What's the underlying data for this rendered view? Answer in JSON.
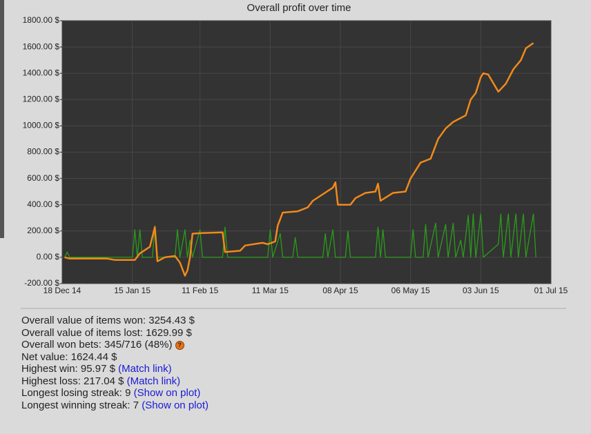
{
  "chart_data": {
    "type": "line",
    "title": "Overall profit over time",
    "xlim": [
      "2014-12-18",
      "2015-07-01"
    ],
    "xticks": [
      {
        "value": "2014-12-18",
        "label": "18 Dec 14"
      },
      {
        "value": "2015-01-15",
        "label": "15 Jan 15"
      },
      {
        "value": "2015-02-11",
        "label": "11 Feb 15"
      },
      {
        "value": "2015-03-11",
        "label": "11 Mar 15"
      },
      {
        "value": "2015-04-08",
        "label": "08 Apr 15"
      },
      {
        "value": "2015-05-06",
        "label": "06 May 15"
      },
      {
        "value": "2015-06-03",
        "label": "03 Jun 15"
      },
      {
        "value": "2015-07-01",
        "label": "01 Jul 15"
      }
    ],
    "ylim": [
      -200,
      1800
    ],
    "yticks": [
      {
        "value": -200,
        "label": "-200.00 $"
      },
      {
        "value": 0,
        "label": "0.00 $"
      },
      {
        "value": 200,
        "label": "200.00 $"
      },
      {
        "value": 400,
        "label": "400.00 $"
      },
      {
        "value": 600,
        "label": "600.00 $"
      },
      {
        "value": 800,
        "label": "800.00 $"
      },
      {
        "value": 1000,
        "label": "1000.00 $"
      },
      {
        "value": 1200,
        "label": "1200.00 $"
      },
      {
        "value": 1400,
        "label": "1400.00 $"
      },
      {
        "value": 1600,
        "label": "1600.00 $"
      },
      {
        "value": 1800,
        "label": "1800.00 $"
      }
    ],
    "grid": true,
    "series": [
      {
        "color": "#2a9d1a",
        "x": [
          "2014-12-19",
          "2014-12-20",
          "2014-12-21",
          "2015-01-15",
          "2015-01-16",
          "2015-01-17",
          "2015-01-18",
          "2015-01-19",
          "2015-01-23",
          "2015-01-24",
          "2015-01-25",
          "2015-02-01",
          "2015-02-02",
          "2015-02-03",
          "2015-02-05",
          "2015-02-06",
          "2015-02-07",
          "2015-02-08",
          "2015-02-11",
          "2015-02-12",
          "2015-02-20",
          "2015-02-21",
          "2015-02-22",
          "2015-03-10",
          "2015-03-11",
          "2015-03-12",
          "2015-03-15",
          "2015-03-16",
          "2015-03-20",
          "2015-03-21",
          "2015-03-22",
          "2015-04-01",
          "2015-04-02",
          "2015-04-03",
          "2015-04-05",
          "2015-04-06",
          "2015-04-10",
          "2015-04-11",
          "2015-04-12",
          "2015-04-22",
          "2015-04-23",
          "2015-04-24",
          "2015-04-25",
          "2015-04-26",
          "2015-05-06",
          "2015-05-07",
          "2015-05-08",
          "2015-05-11",
          "2015-05-12",
          "2015-05-13",
          "2015-05-16",
          "2015-05-17",
          "2015-05-20",
          "2015-05-21",
          "2015-05-23",
          "2015-05-24",
          "2015-05-26",
          "2015-05-27",
          "2015-05-29",
          "2015-05-30",
          "2015-05-31",
          "2015-06-01",
          "2015-06-03",
          "2015-06-04",
          "2015-06-10",
          "2015-06-11",
          "2015-06-12",
          "2015-06-14",
          "2015-06-15",
          "2015-06-17",
          "2015-06-18",
          "2015-06-20",
          "2015-06-21",
          "2015-06-24",
          "2015-06-25"
        ],
        "values": [
          0,
          40,
          0,
          0,
          210,
          0,
          210,
          0,
          0,
          240,
          0,
          0,
          210,
          0,
          210,
          0,
          130,
          0,
          210,
          0,
          0,
          230,
          0,
          0,
          210,
          0,
          180,
          0,
          0,
          150,
          0,
          0,
          180,
          0,
          210,
          0,
          0,
          200,
          0,
          0,
          230,
          0,
          210,
          0,
          0,
          210,
          0,
          0,
          250,
          0,
          260,
          0,
          250,
          0,
          260,
          0,
          130,
          0,
          320,
          0,
          330,
          0,
          330,
          0,
          100,
          330,
          0,
          330,
          0,
          330,
          0,
          330,
          0,
          330,
          0
        ]
      },
      {
        "color": "#f28a1a",
        "x": [
          "2014-12-19",
          "2014-12-21",
          "2015-01-05",
          "2015-01-08",
          "2015-01-16",
          "2015-01-18",
          "2015-01-22",
          "2015-01-24",
          "2015-01-25",
          "2015-01-28",
          "2015-02-01",
          "2015-02-03",
          "2015-02-05",
          "2015-02-06",
          "2015-02-07",
          "2015-02-08",
          "2015-02-12",
          "2015-02-20",
          "2015-02-21",
          "2015-02-27",
          "2015-03-01",
          "2015-03-08",
          "2015-03-10",
          "2015-03-13",
          "2015-03-14",
          "2015-03-16",
          "2015-03-22",
          "2015-03-26",
          "2015-03-28",
          "2015-04-01",
          "2015-04-05",
          "2015-04-06",
          "2015-04-07",
          "2015-04-12",
          "2015-04-14",
          "2015-04-18",
          "2015-04-22",
          "2015-04-23",
          "2015-04-24",
          "2015-04-29",
          "2015-05-04",
          "2015-05-06",
          "2015-05-10",
          "2015-05-14",
          "2015-05-17",
          "2015-05-20",
          "2015-05-23",
          "2015-05-26",
          "2015-05-28",
          "2015-05-30",
          "2015-06-01",
          "2015-06-03",
          "2015-06-04",
          "2015-06-06",
          "2015-06-10",
          "2015-06-13",
          "2015-06-16",
          "2015-06-19",
          "2015-06-21",
          "2015-06-24"
        ],
        "values": [
          0,
          -10,
          -10,
          -20,
          -20,
          30,
          80,
          230,
          -30,
          0,
          10,
          -40,
          -140,
          -100,
          0,
          180,
          185,
          190,
          40,
          50,
          90,
          110,
          100,
          120,
          240,
          340,
          350,
          380,
          430,
          480,
          530,
          570,
          400,
          400,
          450,
          490,
          500,
          560,
          430,
          490,
          500,
          600,
          720,
          750,
          900,
          980,
          1030,
          1060,
          1080,
          1200,
          1250,
          1370,
          1400,
          1390,
          1260,
          1320,
          1430,
          1500,
          1590,
          1630
        ]
      }
    ]
  },
  "stats": [
    {
      "text": "Overall value of items won: 3254.43 $"
    },
    {
      "text": "Overall value of items lost: 1629.99 $"
    },
    {
      "text": "Overall won bets: 345/716 (48%)",
      "icon": "?"
    },
    {
      "text": "Net value: 1624.44 $"
    },
    {
      "text": "Highest win: 95.97 $",
      "link": "(Match link)"
    },
    {
      "text": "Highest loss: 217.04 $",
      "link": "(Match link)"
    },
    {
      "text": "Longest losing streak: 9",
      "link": "(Show on plot)"
    },
    {
      "text": "Longest winning streak: 7",
      "link": "(Show on plot)"
    }
  ]
}
